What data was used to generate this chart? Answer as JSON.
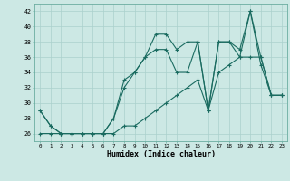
{
  "xlabel": "Humidex (Indice chaleur)",
  "bg_color": "#cce8e4",
  "grid_color": "#aad0cc",
  "line_color": "#1a6b60",
  "xlim": [
    -0.5,
    23.5
  ],
  "ylim": [
    25.0,
    43.0
  ],
  "yticks": [
    26,
    28,
    30,
    32,
    34,
    36,
    38,
    40,
    42
  ],
  "xticks": [
    0,
    1,
    2,
    3,
    4,
    5,
    6,
    7,
    8,
    9,
    10,
    11,
    12,
    13,
    14,
    15,
    16,
    17,
    18,
    19,
    20,
    21,
    22,
    23
  ],
  "series1": [
    29,
    27,
    26,
    26,
    26,
    26,
    26,
    28,
    33,
    34,
    36,
    39,
    39,
    37,
    38,
    38,
    29,
    38,
    38,
    37,
    42,
    35,
    31,
    31
  ],
  "series2": [
    29,
    27,
    26,
    26,
    26,
    26,
    26,
    28,
    32,
    34,
    36,
    37,
    37,
    34,
    34,
    38,
    29,
    38,
    38,
    36,
    42,
    36,
    31,
    31
  ],
  "series3": [
    26,
    26,
    26,
    26,
    26,
    26,
    26,
    26,
    27,
    27,
    28,
    29,
    30,
    31,
    32,
    33,
    29,
    34,
    35,
    36,
    36,
    36,
    31,
    31
  ]
}
